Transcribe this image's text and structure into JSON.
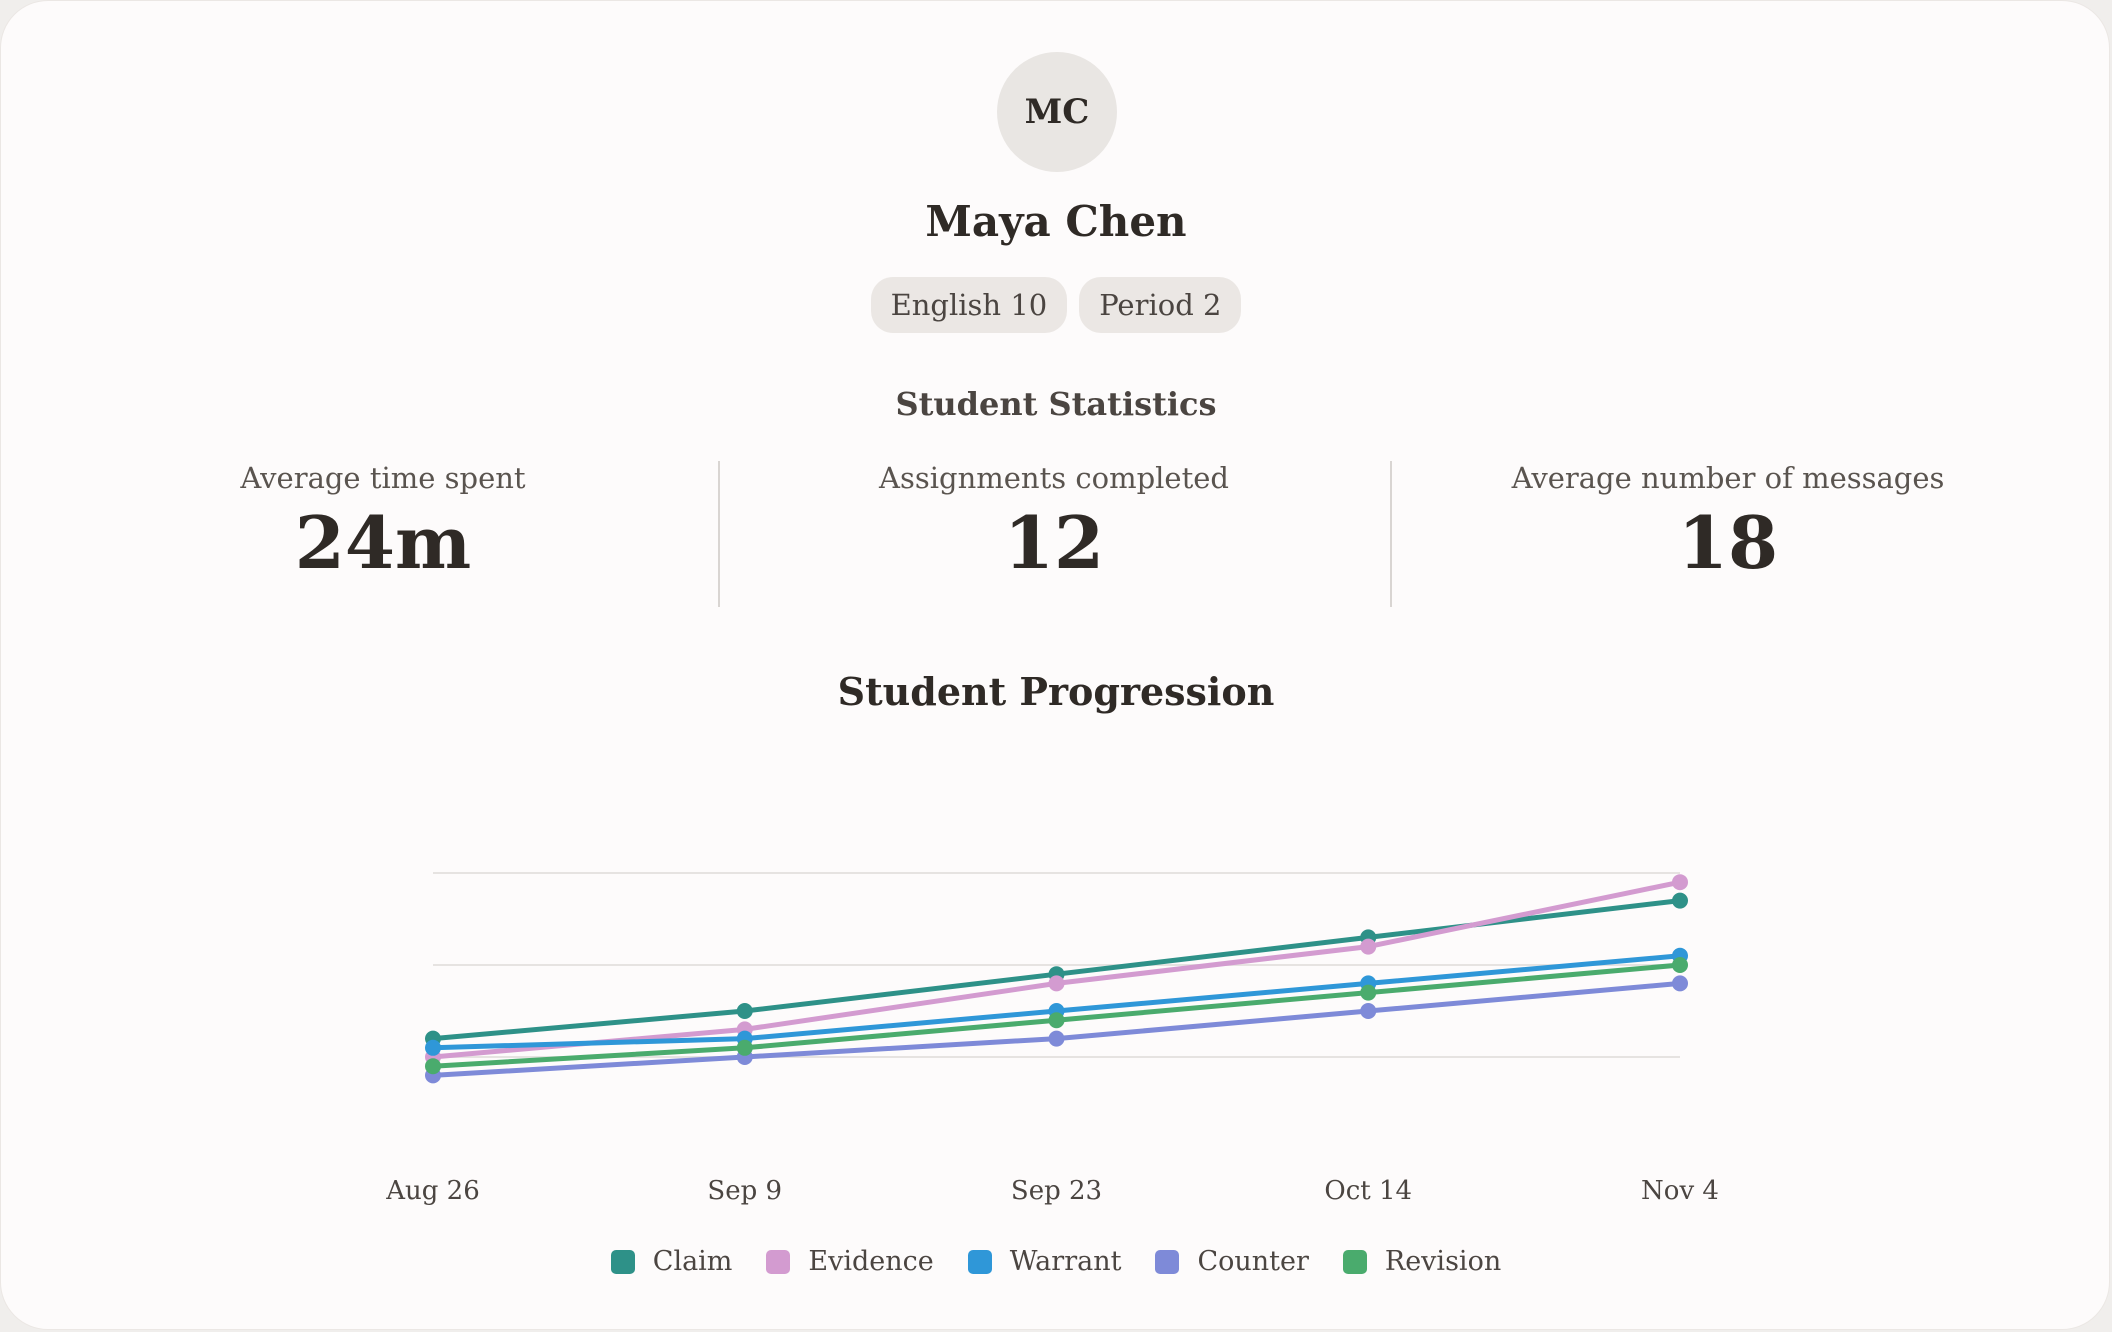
{
  "student": {
    "initials": "MC",
    "name": "Maya Chen",
    "tags": [
      "English 10",
      "Period 2"
    ]
  },
  "stats_section": {
    "title": "Student Statistics",
    "items": [
      {
        "label": "Average time spent",
        "value": "24m"
      },
      {
        "label": "Assignments completed",
        "value": "12"
      },
      {
        "label": "Average number of messages",
        "value": "18"
      }
    ]
  },
  "chart_data": {
    "type": "line",
    "title": "Student Progression",
    "categories": [
      "Aug 26",
      "Sep 9",
      "Sep 23",
      "Oct 14",
      "Nov 4"
    ],
    "ylim": [
      0,
      4
    ],
    "gridlines": [
      1,
      2,
      3
    ],
    "grid": true,
    "legend": "bottom",
    "series": [
      {
        "name": "Claim",
        "color": "#2e9188",
        "values": [
          1.2,
          1.5,
          1.9,
          2.3,
          2.7
        ]
      },
      {
        "name": "Evidence",
        "color": "#d39bd0",
        "values": [
          1.0,
          1.3,
          1.8,
          2.2,
          2.9
        ]
      },
      {
        "name": "Warrant",
        "color": "#2f97d8",
        "values": [
          1.1,
          1.2,
          1.5,
          1.8,
          2.1
        ]
      },
      {
        "name": "Counter",
        "color": "#7e8ad8",
        "values": [
          0.8,
          1.0,
          1.2,
          1.5,
          1.8
        ]
      },
      {
        "name": "Revision",
        "color": "#4aab6d",
        "values": [
          0.9,
          1.1,
          1.4,
          1.7,
          2.0
        ]
      }
    ]
  }
}
